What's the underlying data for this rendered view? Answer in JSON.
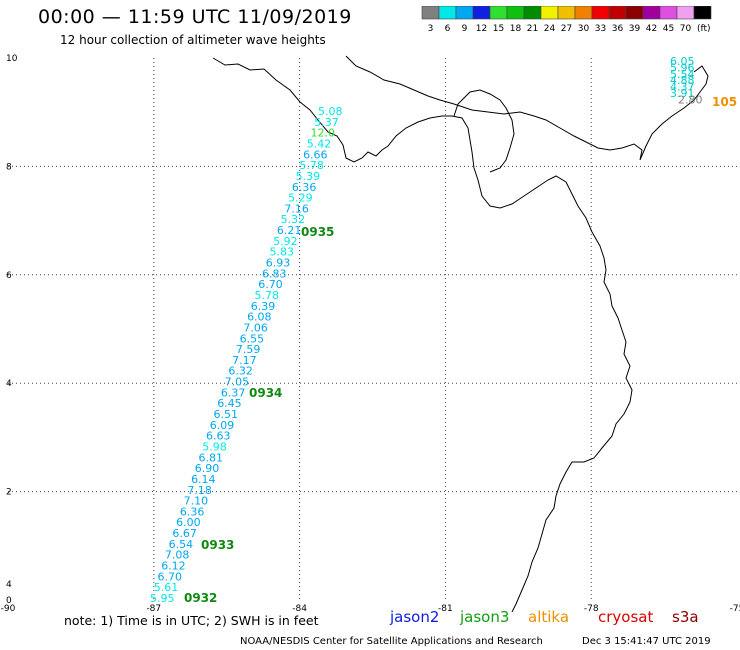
{
  "header": {
    "title": "00:00 — 11:59 UTC 11/09/2019",
    "subtitle": "12 hour collection of altimeter wave heights"
  },
  "legend": {
    "unit": "(ft)",
    "bins": [
      {
        "label": "3",
        "color": "#808080"
      },
      {
        "label": "6",
        "color": "#00e8e8"
      },
      {
        "label": "9",
        "color": "#00a8f0"
      },
      {
        "label": "12",
        "color": "#1020e0"
      },
      {
        "label": "15",
        "color": "#30e030"
      },
      {
        "label": "18",
        "color": "#10c010"
      },
      {
        "label": "21",
        "color": "#008c00"
      },
      {
        "label": "24",
        "color": "#f0f000"
      },
      {
        "label": "27",
        "color": "#f0c000"
      },
      {
        "label": "30",
        "color": "#f08000"
      },
      {
        "label": "33",
        "color": "#f00000"
      },
      {
        "label": "36",
        "color": "#c00000"
      },
      {
        "label": "39",
        "color": "#8c0000"
      },
      {
        "label": "42",
        "color": "#a000a0"
      },
      {
        "label": "45",
        "color": "#e050e0"
      },
      {
        "label": "70",
        "color": "#f0a0f0"
      },
      {
        "label": "",
        "color": "#000000"
      }
    ]
  },
  "axes": {
    "lon_ticks": [
      "-90",
      "-87",
      "-84",
      "-81",
      "-78",
      "-75"
    ],
    "lat_ticks": [
      "0",
      "2",
      "4",
      "6",
      "8",
      "10"
    ],
    "extra_lat_tick": "4"
  },
  "track": {
    "satellite": "jason3",
    "swh_ft": [
      "5.95",
      "5.61",
      "6.70",
      "6.12",
      "7.08",
      "6.54",
      "6.67",
      "6.00",
      "6.36",
      "7.10",
      "7.18",
      "6.14",
      "6.90",
      "6.81",
      "5.98",
      "6.63",
      "6.09",
      "6.51",
      "6.45",
      "6.37",
      "7.05",
      "6.32",
      "7.17",
      "7.59",
      "6.55",
      "7.06",
      "6.08",
      "6.39",
      "5.78",
      "6.70",
      "6.83",
      "6.93",
      "5.83",
      "5.92",
      "6.21",
      "5.32",
      "7.16",
      "5.29",
      "6.36",
      "5.39",
      "5.78",
      "6.66",
      "5.42",
      "12.0",
      "5.37",
      "5.08"
    ],
    "times": [
      "0932",
      "0933",
      "0934",
      "0935"
    ]
  },
  "east_cluster": {
    "values": [
      "6.05",
      "5.96",
      "5.54",
      "4.88",
      "4.37",
      "3.91",
      "2.80"
    ],
    "colors": [
      "#00cccc",
      "#00cccc",
      "#00cccc",
      "#00cccc",
      "#00cccc",
      "#00cccc",
      "#808080"
    ],
    "time": "105"
  },
  "bottom": {
    "note": "note:  1) Time is in UTC;  2) SWH is in feet",
    "satellites": [
      {
        "name": "jason2",
        "color": "#1020e0"
      },
      {
        "name": "jason3",
        "color": "#10a010"
      },
      {
        "name": "altika",
        "color": "#f09000"
      },
      {
        "name": "cryosat",
        "color": "#e00000"
      },
      {
        "name": "s3a",
        "color": "#8c0000"
      }
    ],
    "footer": "NOAA/NESDIS Center for Satellite Applications and Research",
    "timestamp": "Dec  3 15:41:47 UTC 2019"
  }
}
